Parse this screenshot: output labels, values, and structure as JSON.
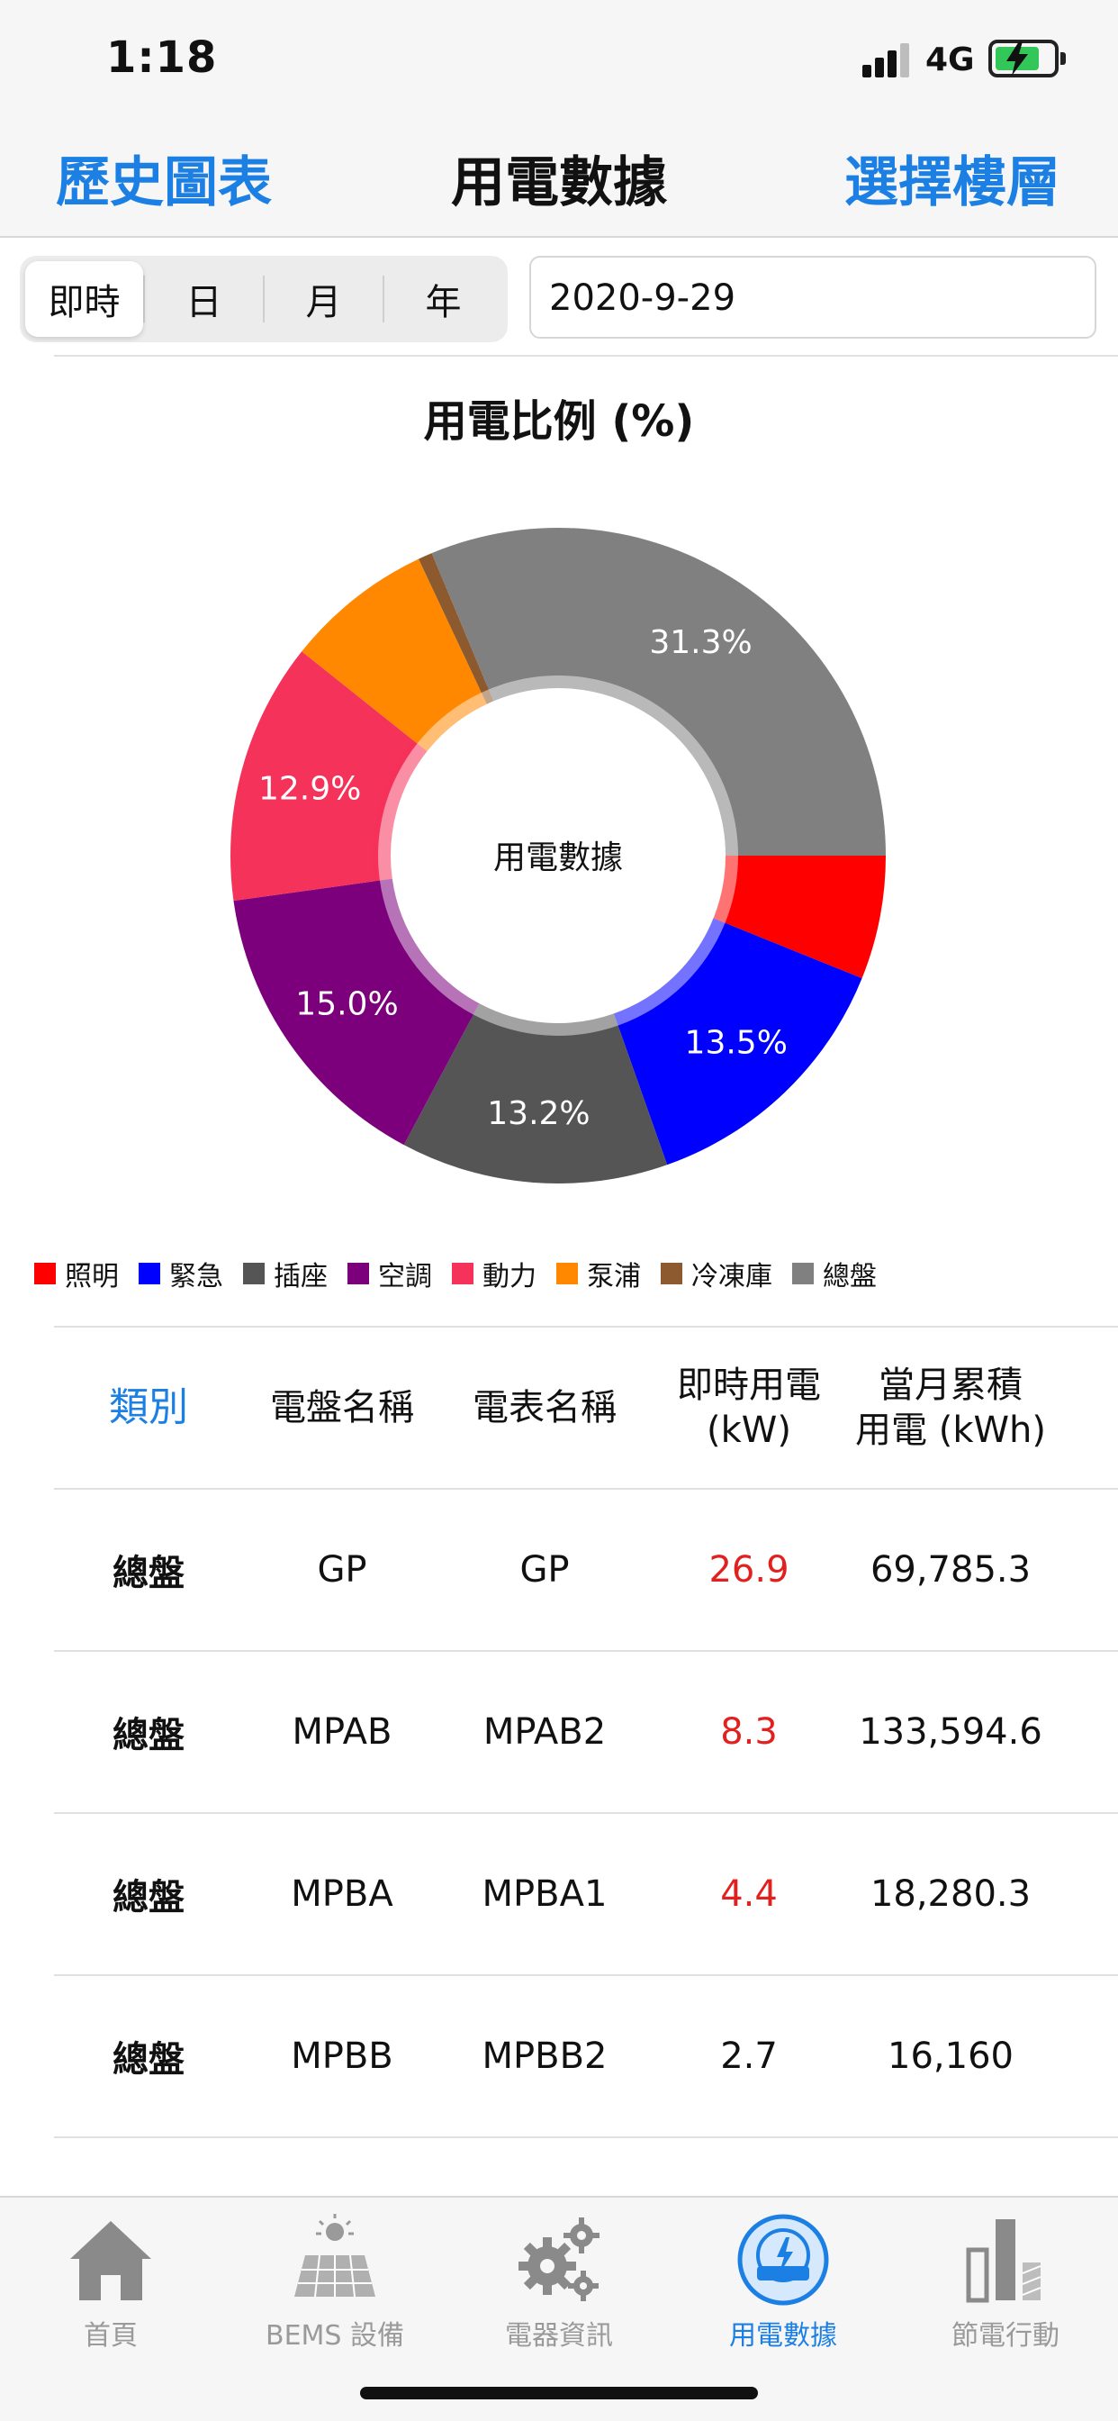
{
  "status_bar": {
    "time": "1:18",
    "network": "4G"
  },
  "nav": {
    "left": "歷史圖表",
    "title": "用電數據",
    "right": "選擇樓層"
  },
  "segment": {
    "items": [
      "即時",
      "日",
      "月",
      "年"
    ],
    "selected": "即時"
  },
  "date": "2020-9-29",
  "chart_title": "用電比例 (%)",
  "chart_center_label": "用電數據",
  "chart_data": {
    "type": "pie",
    "title": "用電比例 (%)",
    "categories": [
      "照明",
      "緊急",
      "插座",
      "空調",
      "動力",
      "泵浦",
      "冷凍庫",
      "總盤"
    ],
    "values": [
      6.1,
      13.5,
      13.2,
      15.0,
      12.9,
      7.3,
      0.7,
      31.3
    ],
    "labels": [
      "",
      "13.5%",
      "13.2%",
      "15.0%",
      "12.9%",
      "",
      "",
      "31.3%"
    ],
    "colors": [
      "#ff0000",
      "#0000ff",
      "#555555",
      "#7c007c",
      "#f5325a",
      "#ff8800",
      "#8c5a2e",
      "#808080"
    ],
    "legend_position": "bottom"
  },
  "table": {
    "headers": [
      "類別",
      "電盤名稱",
      "電表名稱",
      "即時用電\n(kW)",
      "當月累積\n用電 (kWh)"
    ],
    "rows": [
      {
        "category": "總盤",
        "panel": "GP",
        "meter": "GP",
        "kw": "26.9",
        "kwh": "69,785.3",
        "kw_color": "#e0211f"
      },
      {
        "category": "總盤",
        "panel": "MPAB",
        "meter": "MPAB2",
        "kw": "8.3",
        "kwh": "133,594.6",
        "kw_color": "#e0211f"
      },
      {
        "category": "總盤",
        "panel": "MPBA",
        "meter": "MPBA1",
        "kw": "4.4",
        "kwh": "18,280.3",
        "kw_color": "#e0211f"
      },
      {
        "category": "總盤",
        "panel": "MPBB",
        "meter": "MPBB2",
        "kw": "2.7",
        "kwh": "16,160",
        "kw_color": "#111111"
      }
    ]
  },
  "tabs": [
    {
      "label": "首頁",
      "icon": "home-icon"
    },
    {
      "label": "BEMS 設備",
      "icon": "solar-panel-icon"
    },
    {
      "label": "電器資訊",
      "icon": "gears-icon"
    },
    {
      "label": "用電數據",
      "icon": "power-meter-icon",
      "active": true
    },
    {
      "label": "節電行動",
      "icon": "bar-chart-icon"
    }
  ]
}
